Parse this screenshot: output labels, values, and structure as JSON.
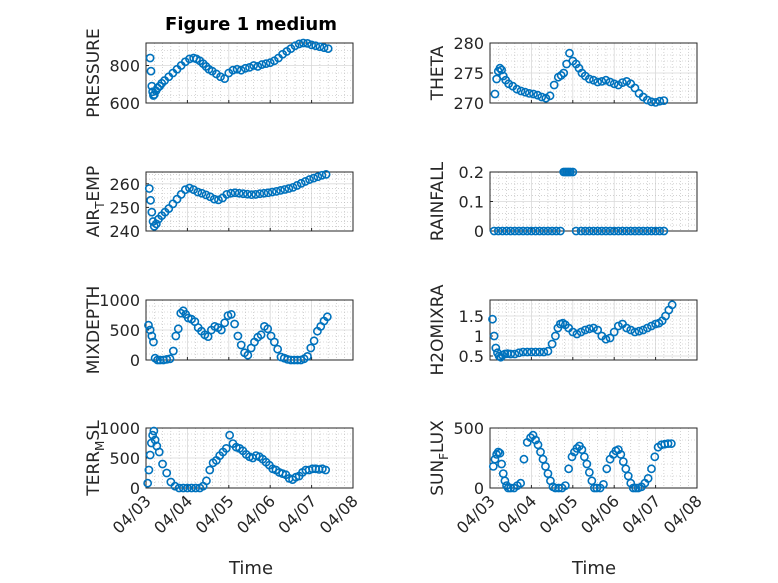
{
  "figure": {
    "title": "Figure 1 medium",
    "xlabel": "Time",
    "marker_color": "#0072bd"
  },
  "chart_data": [
    {
      "type": "scatter",
      "ylabel": "PRESSURE",
      "ylim": [
        600,
        920
      ],
      "yticks": [
        600,
        800
      ],
      "xticks": [
        "04/03",
        "04/04",
        "04/05",
        "04/06",
        "04/07",
        "04/08"
      ],
      "show_xticklabels": false,
      "grid": true,
      "x": [
        0.1,
        0.12,
        0.14,
        0.16,
        0.18,
        0.2,
        0.24,
        0.28,
        0.33,
        0.38,
        0.45,
        0.55,
        0.65,
        0.75,
        0.85,
        0.95,
        1.05,
        1.15,
        1.22,
        1.3,
        1.38,
        1.45,
        1.52,
        1.6,
        1.7,
        1.8,
        1.9,
        2.0,
        2.1,
        2.2,
        2.3,
        2.4,
        2.5,
        2.6,
        2.7,
        2.8,
        2.9,
        3.0,
        3.1,
        3.2,
        3.3,
        3.4,
        3.5,
        3.6,
        3.7,
        3.8,
        3.9,
        4.0,
        4.1,
        4.2,
        4.3,
        4.4
      ],
      "y": [
        840,
        770,
        690,
        660,
        640,
        645,
        665,
        680,
        690,
        705,
        720,
        740,
        760,
        780,
        800,
        820,
        835,
        840,
        835,
        825,
        810,
        795,
        780,
        770,
        755,
        740,
        730,
        760,
        775,
        780,
        775,
        785,
        790,
        800,
        795,
        805,
        810,
        815,
        825,
        840,
        860,
        875,
        890,
        905,
        915,
        920,
        918,
        910,
        905,
        900,
        895,
        890
      ]
    },
    {
      "type": "scatter",
      "ylabel": "THETA",
      "ylim": [
        270,
        280
      ],
      "yticks": [
        270,
        275,
        280
      ],
      "xticks": [
        "04/03",
        "04/04",
        "04/05",
        "04/06",
        "04/07",
        "04/08"
      ],
      "show_xticklabels": false,
      "grid": true,
      "x": [
        0.12,
        0.16,
        0.2,
        0.24,
        0.28,
        0.32,
        0.38,
        0.45,
        0.55,
        0.65,
        0.75,
        0.85,
        0.95,
        1.05,
        1.15,
        1.25,
        1.35,
        1.45,
        1.55,
        1.65,
        1.72,
        1.78,
        1.85,
        1.92,
        2.0,
        2.08,
        2.15,
        2.22,
        2.3,
        2.4,
        2.5,
        2.6,
        2.7,
        2.8,
        2.9,
        3.0,
        3.1,
        3.2,
        3.3,
        3.4,
        3.5,
        3.6,
        3.7,
        3.8,
        3.9,
        4.0,
        4.1,
        4.2
      ],
      "y": [
        271.5,
        274,
        275.3,
        275.8,
        275.5,
        274.5,
        273.8,
        273.2,
        272.8,
        272.3,
        272.0,
        271.8,
        271.6,
        271.5,
        271.3,
        271.0,
        270.8,
        271.2,
        273,
        274.3,
        274.6,
        275.0,
        276.5,
        278.3,
        277,
        276.5,
        275.8,
        275.0,
        274.5,
        274.0,
        273.8,
        273.5,
        273.6,
        273.8,
        273.5,
        273.2,
        273.0,
        273.4,
        273.6,
        273.2,
        272.5,
        271.6,
        271.0,
        270.5,
        270.2,
        270.1,
        270.3,
        270.4
      ]
    },
    {
      "type": "scatter",
      "ylabel": "AIR_TEMP",
      "ylim": [
        240,
        265
      ],
      "yticks": [
        240,
        250,
        260
      ],
      "xticks": [
        "04/03",
        "04/04",
        "04/05",
        "04/06",
        "04/07",
        "04/08"
      ],
      "show_xticklabels": false,
      "grid": true,
      "x": [
        0.08,
        0.11,
        0.14,
        0.17,
        0.2,
        0.25,
        0.3,
        0.38,
        0.46,
        0.55,
        0.65,
        0.75,
        0.85,
        0.95,
        1.05,
        1.15,
        1.25,
        1.35,
        1.45,
        1.55,
        1.65,
        1.75,
        1.85,
        1.95,
        2.05,
        2.15,
        2.25,
        2.35,
        2.45,
        2.55,
        2.65,
        2.75,
        2.85,
        2.95,
        3.05,
        3.15,
        3.25,
        3.35,
        3.45,
        3.55,
        3.65,
        3.75,
        3.85,
        3.95,
        4.05,
        4.15,
        4.25,
        4.35
      ],
      "y": [
        258,
        253,
        248,
        244,
        242,
        243,
        245,
        246.5,
        248,
        249.5,
        251.5,
        253.5,
        255.5,
        257.5,
        258.2,
        257.5,
        256.5,
        256,
        255.3,
        254.5,
        253.5,
        253.2,
        254,
        255.5,
        256,
        256.2,
        256,
        255.8,
        255.6,
        255.4,
        255.5,
        255.8,
        256,
        256.2,
        256.5,
        256.8,
        257.2,
        257.6,
        258,
        258.5,
        259.3,
        260.2,
        261,
        261.8,
        262.4,
        263,
        263.6,
        264
      ]
    },
    {
      "type": "scatter",
      "ylabel": "RAINFALL",
      "ylim": [
        0,
        0.2
      ],
      "yticks": [
        0,
        0.1,
        0.2
      ],
      "xticks": [
        "04/03",
        "04/04",
        "04/05",
        "04/06",
        "04/07",
        "04/08"
      ],
      "show_xticklabels": false,
      "grid": true,
      "x": [
        0.1,
        0.2,
        0.3,
        0.4,
        0.5,
        0.6,
        0.7,
        0.8,
        0.9,
        1.0,
        1.1,
        1.2,
        1.3,
        1.4,
        1.5,
        1.6,
        1.7,
        1.78,
        1.82,
        1.86,
        1.9,
        1.94,
        2.0,
        2.08,
        2.2,
        2.3,
        2.4,
        2.5,
        2.6,
        2.7,
        2.8,
        2.9,
        3.0,
        3.1,
        3.2,
        3.3,
        3.4,
        3.5,
        3.6,
        3.7,
        3.8,
        3.9,
        4.0,
        4.1,
        4.2
      ],
      "y": [
        0,
        0,
        0,
        0,
        0,
        0,
        0,
        0,
        0,
        0,
        0,
        0,
        0,
        0,
        0,
        0,
        0,
        0.2,
        0.2,
        0.2,
        0.2,
        0.2,
        0.2,
        0,
        0,
        0,
        0,
        0,
        0,
        0,
        0,
        0,
        0,
        0,
        0,
        0,
        0,
        0,
        0,
        0,
        0,
        0,
        0,
        0,
        0
      ]
    },
    {
      "type": "scatter",
      "ylabel": "MIXDEPTH",
      "ylim": [
        0,
        1000
      ],
      "yticks": [
        0,
        500,
        1000
      ],
      "xticks": [
        "04/03",
        "04/04",
        "04/05",
        "04/06",
        "04/07",
        "04/08"
      ],
      "show_xticklabels": false,
      "grid": true,
      "x": [
        0.06,
        0.1,
        0.14,
        0.18,
        0.22,
        0.28,
        0.34,
        0.42,
        0.5,
        0.58,
        0.66,
        0.72,
        0.78,
        0.84,
        0.9,
        0.96,
        1.02,
        1.1,
        1.18,
        1.26,
        1.34,
        1.42,
        1.5,
        1.58,
        1.66,
        1.74,
        1.82,
        1.9,
        1.98,
        2.06,
        2.14,
        2.22,
        2.3,
        2.38,
        2.46,
        2.54,
        2.62,
        2.7,
        2.78,
        2.86,
        2.94,
        3.02,
        3.1,
        3.18,
        3.26,
        3.34,
        3.42,
        3.5,
        3.58,
        3.66,
        3.74,
        3.82,
        3.9,
        3.98,
        4.06,
        4.14,
        4.22,
        4.3,
        4.38
      ],
      "y": [
        580,
        500,
        400,
        300,
        30,
        0,
        0,
        0,
        10,
        20,
        150,
        400,
        520,
        780,
        820,
        760,
        700,
        680,
        640,
        540,
        480,
        420,
        390,
        500,
        560,
        540,
        500,
        620,
        740,
        760,
        600,
        400,
        250,
        120,
        80,
        200,
        300,
        380,
        420,
        560,
        520,
        400,
        300,
        180,
        50,
        30,
        10,
        0,
        0,
        0,
        0,
        20,
        60,
        200,
        320,
        480,
        560,
        650,
        720
      ]
    },
    {
      "type": "scatter",
      "ylabel": "H2OMIXRA",
      "ylim": [
        0.4,
        1.9
      ],
      "yticks": [
        0.5,
        1,
        1.5
      ],
      "xticks": [
        "04/03",
        "04/04",
        "04/05",
        "04/06",
        "04/07",
        "04/08"
      ],
      "show_xticklabels": false,
      "grid": true,
      "x": [
        0.06,
        0.1,
        0.14,
        0.18,
        0.22,
        0.26,
        0.3,
        0.36,
        0.42,
        0.5,
        0.6,
        0.7,
        0.8,
        0.9,
        1.0,
        1.1,
        1.2,
        1.3,
        1.4,
        1.5,
        1.58,
        1.64,
        1.7,
        1.76,
        1.82,
        1.9,
        2.0,
        2.1,
        2.2,
        2.3,
        2.4,
        2.5,
        2.6,
        2.7,
        2.8,
        2.9,
        3.0,
        3.1,
        3.2,
        3.3,
        3.4,
        3.5,
        3.6,
        3.7,
        3.8,
        3.9,
        4.0,
        4.08,
        4.16,
        4.24,
        4.32,
        4.4
      ],
      "y": [
        1.42,
        1.0,
        0.7,
        0.58,
        0.5,
        0.47,
        0.52,
        0.55,
        0.56,
        0.55,
        0.55,
        0.58,
        0.6,
        0.6,
        0.6,
        0.6,
        0.6,
        0.6,
        0.62,
        0.8,
        1.0,
        1.2,
        1.3,
        1.32,
        1.28,
        1.2,
        1.1,
        1.05,
        1.1,
        1.15,
        1.18,
        1.2,
        1.15,
        1.0,
        0.92,
        0.95,
        1.1,
        1.25,
        1.3,
        1.2,
        1.15,
        1.1,
        1.12,
        1.15,
        1.2,
        1.25,
        1.3,
        1.32,
        1.38,
        1.5,
        1.65,
        1.78
      ]
    },
    {
      "type": "scatter",
      "ylabel": "TERR_MSL",
      "ylim": [
        0,
        1000
      ],
      "yticks": [
        0,
        500,
        1000
      ],
      "xticks": [
        "04/03",
        "04/04",
        "04/05",
        "04/06",
        "04/07",
        "04/08"
      ],
      "show_xticklabels": true,
      "grid": true,
      "x": [
        0.04,
        0.07,
        0.1,
        0.13,
        0.16,
        0.19,
        0.22,
        0.26,
        0.32,
        0.4,
        0.5,
        0.6,
        0.7,
        0.8,
        0.9,
        1.0,
        1.1,
        1.2,
        1.3,
        1.38,
        1.46,
        1.54,
        1.62,
        1.7,
        1.78,
        1.86,
        1.94,
        2.02,
        2.1,
        2.18,
        2.26,
        2.34,
        2.42,
        2.5,
        2.58,
        2.66,
        2.74,
        2.82,
        2.9,
        2.98,
        3.06,
        3.14,
        3.22,
        3.3,
        3.38,
        3.46,
        3.54,
        3.62,
        3.7,
        3.78,
        3.86,
        3.94,
        4.02,
        4.1,
        4.18,
        4.26,
        4.34
      ],
      "y": [
        80,
        300,
        550,
        750,
        880,
        950,
        800,
        700,
        600,
        400,
        250,
        100,
        30,
        0,
        0,
        0,
        0,
        0,
        0,
        30,
        120,
        300,
        420,
        460,
        540,
        600,
        660,
        880,
        740,
        680,
        660,
        620,
        560,
        520,
        500,
        540,
        520,
        480,
        430,
        380,
        320,
        300,
        260,
        240,
        220,
        160,
        140,
        180,
        200,
        260,
        300,
        300,
        320,
        320,
        310,
        320,
        300
      ]
    },
    {
      "type": "scatter",
      "ylabel": "SUN_FLUX",
      "ylim": [
        0,
        500
      ],
      "yticks": [
        0,
        500
      ],
      "xticks": [
        "04/03",
        "04/04",
        "04/05",
        "04/06",
        "04/07",
        "04/08"
      ],
      "show_xticklabels": true,
      "grid": true,
      "x": [
        0.08,
        0.12,
        0.16,
        0.2,
        0.24,
        0.28,
        0.32,
        0.36,
        0.4,
        0.44,
        0.5,
        0.58,
        0.66,
        0.74,
        0.82,
        0.9,
        0.98,
        1.04,
        1.1,
        1.16,
        1.22,
        1.28,
        1.34,
        1.4,
        1.46,
        1.52,
        1.58,
        1.66,
        1.74,
        1.82,
        1.9,
        1.98,
        2.04,
        2.1,
        2.16,
        2.22,
        2.28,
        2.34,
        2.4,
        2.46,
        2.52,
        2.58,
        2.66,
        2.74,
        2.82,
        2.9,
        2.98,
        3.04,
        3.1,
        3.16,
        3.22,
        3.28,
        3.34,
        3.4,
        3.46,
        3.52,
        3.58,
        3.66,
        3.74,
        3.82,
        3.9,
        3.98,
        4.06,
        4.14,
        4.22,
        4.3,
        4.38
      ],
      "y": [
        180,
        240,
        280,
        300,
        290,
        200,
        120,
        60,
        20,
        0,
        0,
        0,
        20,
        40,
        240,
        380,
        420,
        440,
        400,
        360,
        300,
        240,
        180,
        120,
        60,
        10,
        0,
        0,
        0,
        20,
        160,
        260,
        300,
        330,
        350,
        320,
        260,
        200,
        130,
        60,
        0,
        0,
        0,
        30,
        160,
        240,
        280,
        310,
        320,
        280,
        220,
        160,
        100,
        40,
        0,
        0,
        0,
        10,
        40,
        80,
        160,
        260,
        340,
        360,
        365,
        370,
        370
      ]
    }
  ]
}
